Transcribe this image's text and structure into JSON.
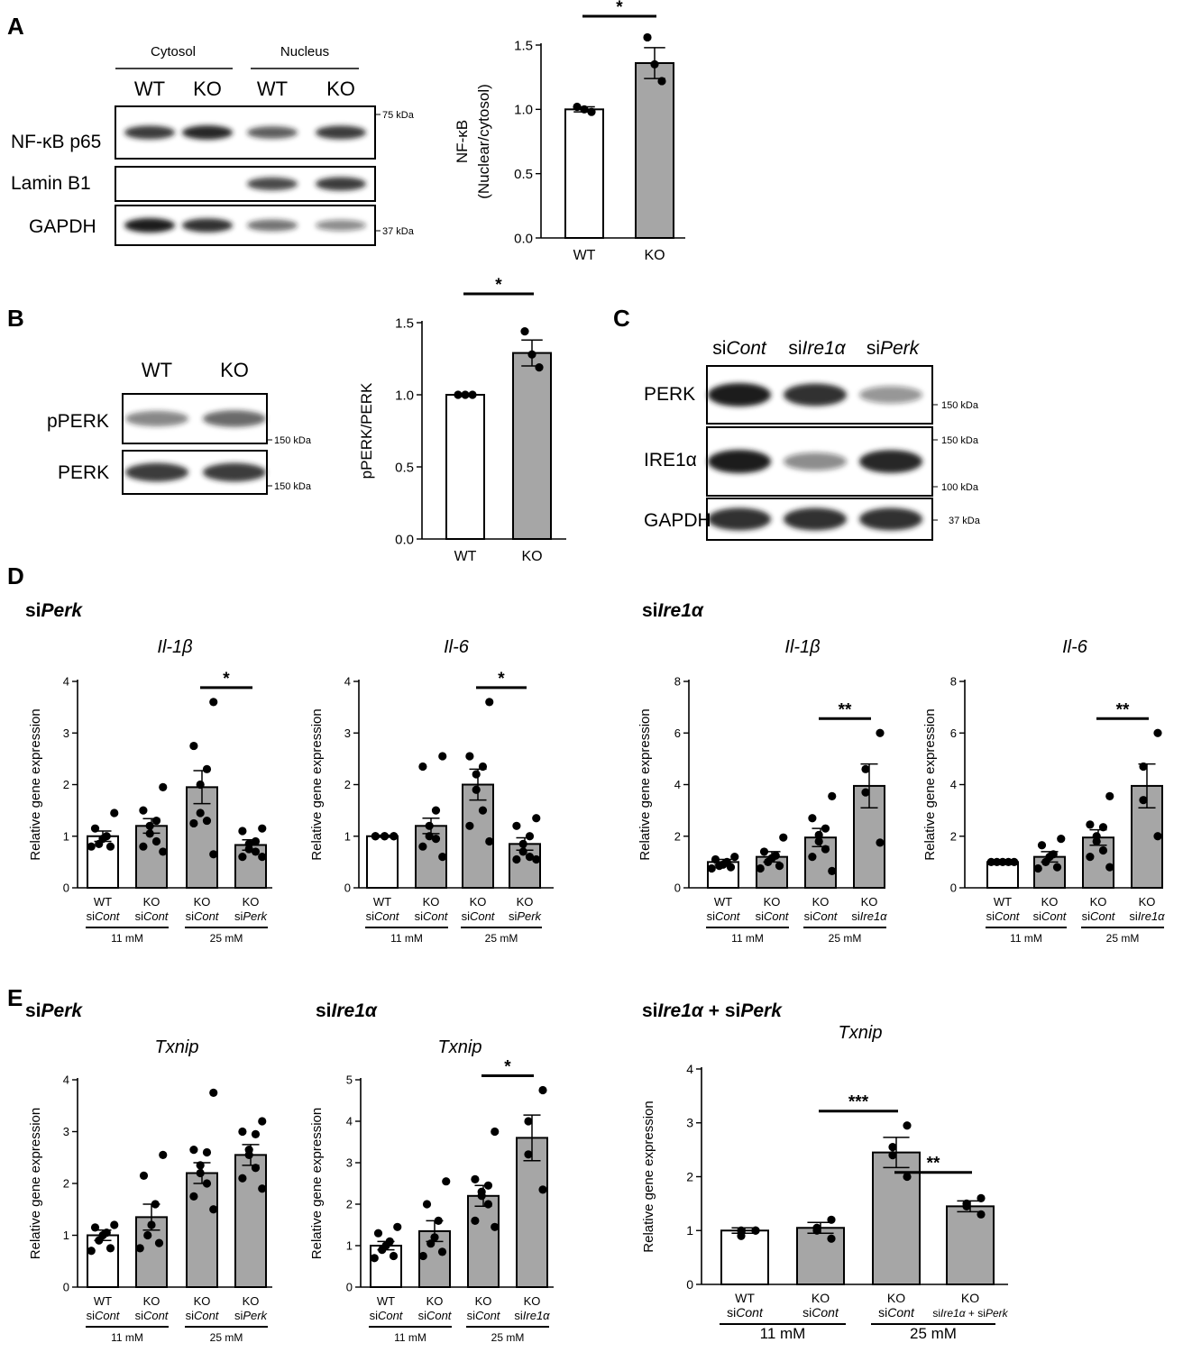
{
  "colors": {
    "wt_bar": "#ffffff",
    "ko_bar": "#a6a6a6",
    "band": "#1c1c1c",
    "axis": "#000000"
  },
  "panels": {
    "A": {
      "letter": "A",
      "blot": {
        "groups": [
          "Cytosol",
          "Nucleus"
        ],
        "lanes": [
          "WT",
          "KO",
          "WT",
          "KO"
        ],
        "rows": [
          {
            "label": "NF-κB p65",
            "marker": "75 kDa",
            "intensity": [
              0.85,
              0.95,
              0.65,
              0.85
            ]
          },
          {
            "label": "Lamin B1",
            "marker": "",
            "intensity": [
              0.03,
              0.03,
              0.75,
              0.85
            ]
          },
          {
            "label": "GAPDH",
            "marker": "37 kDa",
            "intensity": [
              1.0,
              0.9,
              0.55,
              0.4
            ]
          }
        ]
      }
    },
    "B": {
      "letter": "B",
      "blot": {
        "lanes": [
          "WT",
          "KO"
        ],
        "rows": [
          {
            "label": "pPERK",
            "marker": "150 kDa",
            "intensity": [
              0.45,
              0.6
            ]
          },
          {
            "label": "PERK",
            "marker": "150 kDa",
            "intensity": [
              0.85,
              0.85
            ]
          }
        ]
      }
    },
    "C": {
      "letter": "C",
      "blot": {
        "lanes": [
          {
            "pre": "si",
            "it": "Cont"
          },
          {
            "pre": "si",
            "it": "Ire1α"
          },
          {
            "pre": "si",
            "it": "Perk"
          }
        ],
        "rows": [
          {
            "label": "PERK",
            "markers": [
              "150 kDa"
            ],
            "intensity": [
              1.0,
              0.9,
              0.35
            ]
          },
          {
            "label": "IRE1α",
            "markers": [
              "150 kDa",
              "100 kDa"
            ],
            "intensity": [
              1.0,
              0.4,
              0.95
            ]
          },
          {
            "label": "GAPDH",
            "markers": [
              "37 kDa"
            ],
            "intensity": [
              0.9,
              0.9,
              0.9
            ]
          }
        ]
      }
    },
    "D": {
      "letter": "D",
      "heading_left": {
        "pre": "si",
        "it": "Perk"
      },
      "heading_right": {
        "pre": "si",
        "it": "Ire1α"
      }
    },
    "E": {
      "letter": "E",
      "heading_1": {
        "pre": "si",
        "it": "Perk"
      },
      "heading_2": {
        "pre": "si",
        "it": "Ire1α"
      },
      "heading_3": [
        {
          "pre": "si",
          "it": "Ire1α"
        },
        {
          "pre": " + si",
          "it": "Perk"
        }
      ]
    }
  },
  "chart_data": [
    {
      "id": "A_chart",
      "type": "bar",
      "categories": [
        "WT",
        "KO"
      ],
      "values": [
        1.0,
        1.36
      ],
      "sem": [
        0.02,
        0.12
      ],
      "points": [
        [
          0.98,
          1.0,
          1.02
        ],
        [
          1.22,
          1.35,
          1.56
        ]
      ],
      "ylabel": "NF-κB",
      "ylabel2": "(Nuclear/cytosol)",
      "ylim": [
        0,
        1.5
      ],
      "yticks": [
        "0.0",
        "0.5",
        "1.0",
        "1.5"
      ],
      "sig": [
        {
          "from": 0,
          "to": 1,
          "label": "*"
        }
      ]
    },
    {
      "id": "B_chart",
      "type": "bar",
      "categories": [
        "WT",
        "KO"
      ],
      "values": [
        1.0,
        1.29
      ],
      "sem": [
        0.0,
        0.09
      ],
      "points": [
        [
          1.0,
          1.0,
          1.0
        ],
        [
          1.19,
          1.28,
          1.44
        ]
      ],
      "ylabel": "pPERK/PERK",
      "ylim": [
        0,
        1.5
      ],
      "yticks": [
        "0.0",
        "0.5",
        "1.0",
        "1.5"
      ],
      "sig": [
        {
          "from": 0,
          "to": 1,
          "label": "*"
        }
      ]
    },
    {
      "id": "D1",
      "type": "bar",
      "title": "Il-1β",
      "ylabel": "Relative gene expression",
      "categories": [
        [
          "WT",
          "siCont"
        ],
        [
          "KO",
          "siCont"
        ],
        [
          "KO",
          "siCont"
        ],
        [
          "KO",
          "siPerk"
        ]
      ],
      "values": [
        1.0,
        1.2,
        1.95,
        0.83
      ],
      "sem": [
        0.1,
        0.14,
        0.32,
        0.1
      ],
      "points": [
        [
          1.45,
          1.15,
          1.0,
          0.95,
          0.85,
          0.8,
          0.8
        ],
        [
          1.95,
          1.5,
          1.3,
          1.2,
          1.05,
          0.9,
          0.8,
          0.7
        ],
        [
          3.6,
          2.75,
          2.3,
          2.0,
          1.45,
          1.3,
          1.25,
          0.65
        ],
        [
          1.15,
          1.1,
          0.9,
          0.85,
          0.75,
          0.7,
          0.6,
          0.6
        ]
      ],
      "ylim": [
        0,
        4
      ],
      "yticks": [
        "0",
        "1",
        "2",
        "3",
        "4"
      ],
      "groups": [
        {
          "label": "11 mM",
          "from": 0,
          "to": 1
        },
        {
          "label": "25 mM",
          "from": 2,
          "to": 3
        }
      ],
      "sig": [
        {
          "from": 2,
          "to": 3,
          "label": "*"
        }
      ]
    },
    {
      "id": "D2",
      "type": "bar",
      "title": "Il-6",
      "ylabel": "Relative gene expression",
      "categories": [
        [
          "WT",
          "siCont"
        ],
        [
          "KO",
          "siCont"
        ],
        [
          "KO",
          "siCont"
        ],
        [
          "KO",
          "siPerk"
        ]
      ],
      "values": [
        1.0,
        1.2,
        2.0,
        0.85
      ],
      "sem": [
        0.02,
        0.15,
        0.3,
        0.12
      ],
      "points": [
        [
          1.0,
          1.0,
          1.0,
          1.0,
          1.0,
          1.0
        ],
        [
          2.55,
          2.35,
          1.5,
          1.2,
          1.0,
          0.95,
          0.8,
          0.6
        ],
        [
          3.6,
          2.55,
          2.35,
          2.2,
          1.9,
          1.5,
          1.2,
          0.9
        ],
        [
          1.35,
          1.2,
          1.0,
          0.85,
          0.7,
          0.6,
          0.55,
          0.55
        ]
      ],
      "ylim": [
        0,
        4
      ],
      "yticks": [
        "0",
        "1",
        "2",
        "3",
        "4"
      ],
      "groups": [
        {
          "label": "11 mM",
          "from": 0,
          "to": 1
        },
        {
          "label": "25 mM",
          "from": 2,
          "to": 3
        }
      ],
      "sig": [
        {
          "from": 2,
          "to": 3,
          "label": "*"
        }
      ]
    },
    {
      "id": "D3",
      "type": "bar",
      "title": "Il-1β",
      "ylabel": "Relative gene expression",
      "categories": [
        [
          "WT",
          "siCont"
        ],
        [
          "KO",
          "siCont"
        ],
        [
          "KO",
          "siCont"
        ],
        [
          "KO",
          "siIre1α"
        ]
      ],
      "values": [
        1.0,
        1.2,
        1.95,
        3.95
      ],
      "sem": [
        0.1,
        0.2,
        0.35,
        0.85
      ],
      "points": [
        [
          1.2,
          1.1,
          1.0,
          0.9,
          0.85,
          0.8,
          0.75
        ],
        [
          1.95,
          1.4,
          1.25,
          1.15,
          1.0,
          0.85,
          0.75
        ],
        [
          3.55,
          2.7,
          2.3,
          2.05,
          1.8,
          1.5,
          1.2,
          0.65
        ],
        [
          6.0,
          4.6,
          3.7,
          1.75
        ]
      ],
      "ylim": [
        0,
        8
      ],
      "yticks": [
        "0",
        "2",
        "4",
        "6",
        "8"
      ],
      "groups": [
        {
          "label": "11 mM",
          "from": 0,
          "to": 1
        },
        {
          "label": "25 mM",
          "from": 2,
          "to": 3
        }
      ],
      "sig": [
        {
          "from": 2,
          "to": 3,
          "label": "**"
        }
      ]
    },
    {
      "id": "D4",
      "type": "bar",
      "title": "Il-6",
      "ylabel": "Relative gene expression",
      "categories": [
        [
          "WT",
          "siCont"
        ],
        [
          "KO",
          "siCont"
        ],
        [
          "KO",
          "siCont"
        ],
        [
          "KO",
          "siIre1α"
        ]
      ],
      "values": [
        1.0,
        1.2,
        1.95,
        3.95
      ],
      "sem": [
        0.02,
        0.2,
        0.3,
        0.85
      ],
      "points": [
        [
          1.0,
          1.0,
          1.0,
          1.0,
          1.0
        ],
        [
          1.9,
          1.65,
          1.3,
          1.2,
          1.0,
          0.8,
          0.75
        ],
        [
          3.55,
          2.45,
          2.35,
          2.0,
          1.8,
          1.45,
          1.2,
          0.8
        ],
        [
          6.0,
          4.7,
          3.4,
          2.0
        ]
      ],
      "ylim": [
        0,
        8
      ],
      "yticks": [
        "0",
        "2",
        "4",
        "6",
        "8"
      ],
      "groups": [
        {
          "label": "11 mM",
          "from": 0,
          "to": 1
        },
        {
          "label": "25 mM",
          "from": 2,
          "to": 3
        }
      ],
      "sig": [
        {
          "from": 2,
          "to": 3,
          "label": "**"
        }
      ]
    },
    {
      "id": "E1",
      "type": "bar",
      "title": "Txnip",
      "ylabel": "Relative gene expression",
      "categories": [
        [
          "WT",
          "siCont"
        ],
        [
          "KO",
          "siCont"
        ],
        [
          "KO",
          "siCont"
        ],
        [
          "KO",
          "siPerk"
        ]
      ],
      "values": [
        1.0,
        1.35,
        2.2,
        2.55
      ],
      "sem": [
        0.1,
        0.25,
        0.2,
        0.2
      ],
      "points": [
        [
          1.2,
          1.15,
          1.05,
          1.0,
          0.9,
          0.75,
          0.7
        ],
        [
          2.55,
          2.15,
          1.6,
          1.2,
          1.0,
          0.85,
          0.75
        ],
        [
          3.75,
          2.65,
          2.6,
          2.35,
          2.2,
          2.0,
          1.75,
          1.5
        ],
        [
          3.2,
          3.0,
          2.95,
          2.65,
          2.55,
          2.3,
          2.1,
          1.9
        ]
      ],
      "ylim": [
        0,
        4
      ],
      "yticks": [
        "0",
        "1",
        "2",
        "3",
        "4"
      ],
      "groups": [
        {
          "label": "11 mM",
          "from": 0,
          "to": 1
        },
        {
          "label": "25 mM",
          "from": 2,
          "to": 3
        }
      ],
      "sig": []
    },
    {
      "id": "E2",
      "type": "bar",
      "title": "Txnip",
      "ylabel": "Relative gene expression",
      "categories": [
        [
          "WT",
          "siCont"
        ],
        [
          "KO",
          "siCont"
        ],
        [
          "KO",
          "siCont"
        ],
        [
          "KO",
          "siIre1α"
        ]
      ],
      "values": [
        1.0,
        1.35,
        2.2,
        3.6
      ],
      "sem": [
        0.1,
        0.25,
        0.25,
        0.55
      ],
      "points": [
        [
          1.45,
          1.3,
          1.1,
          1.0,
          0.9,
          0.75,
          0.7
        ],
        [
          2.55,
          2.0,
          1.6,
          1.2,
          1.05,
          0.85,
          0.75
        ],
        [
          3.75,
          2.6,
          2.45,
          2.3,
          2.2,
          2.0,
          1.6,
          1.45
        ],
        [
          4.75,
          4.0,
          3.2,
          2.35
        ]
      ],
      "ylim": [
        0,
        5
      ],
      "yticks": [
        "0",
        "1",
        "2",
        "3",
        "4",
        "5"
      ],
      "groups": [
        {
          "label": "11 mM",
          "from": 0,
          "to": 1
        },
        {
          "label": "25 mM",
          "from": 2,
          "to": 3
        }
      ],
      "sig": [
        {
          "from": 2,
          "to": 3,
          "label": "*"
        }
      ]
    },
    {
      "id": "E3",
      "type": "bar",
      "title": "Txnip",
      "ylabel": "Relative gene expression",
      "categories": [
        [
          "WT",
          "siCont"
        ],
        [
          "KO",
          "siCont"
        ],
        [
          "KO",
          "siCont"
        ],
        [
          "KO",
          "siIre1α + siPerk"
        ]
      ],
      "values": [
        1.0,
        1.05,
        2.45,
        1.45
      ],
      "sem": [
        0.05,
        0.1,
        0.28,
        0.1
      ],
      "points": [
        [
          1.0,
          1.0,
          0.9,
          1.0
        ],
        [
          1.2,
          1.05,
          1.0,
          0.85
        ],
        [
          2.95,
          2.55,
          2.4,
          2.0
        ],
        [
          1.6,
          1.5,
          1.45,
          1.3
        ]
      ],
      "ylim": [
        0,
        4
      ],
      "yticks": [
        "0",
        "1",
        "2",
        "3",
        "4"
      ],
      "groups": [
        {
          "label": "11 mM",
          "from": 0,
          "to": 1
        },
        {
          "label": "25 mM",
          "from": 2,
          "to": 3
        }
      ],
      "sig": [
        {
          "from": 1,
          "to": 2,
          "label": "***"
        },
        {
          "from": 2,
          "to": 3,
          "label": "**"
        }
      ]
    }
  ]
}
